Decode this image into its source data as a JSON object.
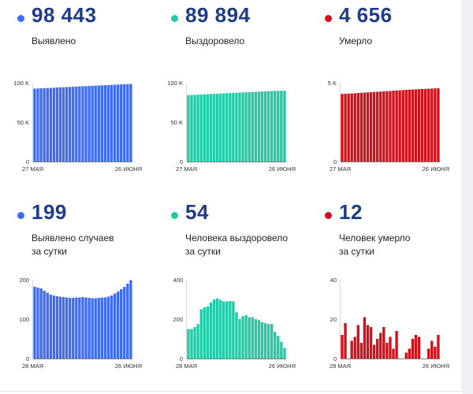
{
  "colors": {
    "blue": "#3d6cf2",
    "teal": "#22c9a5",
    "red": "#d0111b",
    "number": "#1f3c88"
  },
  "panels": [
    {
      "value": "98 443",
      "label": [
        "Выявлено"
      ],
      "color": "#3d6cf2",
      "chart_data": {
        "type": "bar",
        "title": "Выявлено",
        "ylim": [
          0,
          100000
        ],
        "yticks": [
          "100 K",
          "50 K",
          "0"
        ],
        "xtick_start": "27 МАЯ",
        "xtick_end": "26 ИЮНЯ",
        "values": [
          92500,
          92700,
          92900,
          93100,
          93300,
          93500,
          93700,
          93900,
          94100,
          94300,
          94500,
          94700,
          94900,
          95100,
          95300,
          95500,
          95700,
          95900,
          96100,
          96300,
          96500,
          96700,
          96900,
          97100,
          97300,
          97500,
          97700,
          97900,
          98100,
          98250,
          98443
        ]
      }
    },
    {
      "value": "89 894",
      "label": [
        "Выздоровело"
      ],
      "color": "#22c9a5",
      "chart_data": {
        "type": "bar",
        "title": "Выздоровело",
        "ylim": [
          0,
          100000
        ],
        "yticks": [
          "100 K",
          "50 K",
          "0"
        ],
        "xtick_start": "27 МАЯ",
        "xtick_end": "26 ИЮНЯ",
        "values": [
          84300,
          84500,
          84700,
          84900,
          85100,
          85300,
          85500,
          85700,
          85900,
          86100,
          86300,
          86500,
          86700,
          86900,
          87100,
          87300,
          87500,
          87700,
          87900,
          88100,
          88300,
          88500,
          88700,
          88900,
          89100,
          89300,
          89500,
          89600,
          89700,
          89800,
          89894
        ]
      }
    },
    {
      "value": "4 656",
      "label": [
        "Умерло"
      ],
      "color": "#d0111b",
      "chart_data": {
        "type": "bar",
        "title": "Умерло",
        "ylim": [
          0,
          5000
        ],
        "yticks": [
          "5 K",
          "",
          "0"
        ],
        "xtick_start": "27 МАЯ",
        "xtick_end": "26 ИЮНЯ",
        "values": [
          4290,
          4300,
          4310,
          4320,
          4335,
          4350,
          4360,
          4375,
          4390,
          4400,
          4415,
          4430,
          4440,
          4455,
          4470,
          4480,
          4495,
          4510,
          4520,
          4535,
          4550,
          4560,
          4570,
          4580,
          4590,
          4600,
          4610,
          4620,
          4630,
          4644,
          4656
        ]
      }
    },
    {
      "value": "199",
      "label": [
        "Выявлено случаев",
        "за сутки"
      ],
      "color": "#3d6cf2",
      "chart_data": {
        "type": "bar",
        "title": "Выявлено случаев за сутки",
        "ylim": [
          0,
          200
        ],
        "yticks": [
          "200",
          "100",
          "0"
        ],
        "xtick_start": "28 МАЯ",
        "xtick_end": "26 ИЮНЯ",
        "values": [
          182,
          180,
          178,
          172,
          167,
          162,
          160,
          158,
          157,
          156,
          155,
          154,
          154,
          155,
          155,
          156,
          155,
          154,
          153,
          153,
          154,
          155,
          155,
          157,
          160,
          165,
          170,
          176,
          182,
          190,
          199
        ]
      }
    },
    {
      "value": "54",
      "label": [
        "Человека выздоровело",
        "за сутки"
      ],
      "color": "#22c9a5",
      "chart_data": {
        "type": "bar",
        "title": "Человека выздоровело за сутки",
        "ylim": [
          0,
          400
        ],
        "yticks": [
          "400",
          "200",
          "0"
        ],
        "xtick_start": "28 МАЯ",
        "xtick_end": "26 ИЮНЯ",
        "values": [
          150,
          150,
          160,
          175,
          250,
          260,
          265,
          285,
          300,
          305,
          298,
          290,
          290,
          292,
          290,
          235,
          200,
          215,
          220,
          210,
          210,
          200,
          195,
          185,
          180,
          175,
          175,
          135,
          115,
          85,
          54
        ]
      }
    },
    {
      "value": "12",
      "label": [
        "Человек умерло",
        "за сутки"
      ],
      "color": "#d0111b",
      "chart_data": {
        "type": "bar",
        "title": "Человек умерло за сутки",
        "ylim": [
          0,
          40
        ],
        "yticks": [
          "40",
          "20",
          "0"
        ],
        "xtick_start": "28 МАЯ",
        "xtick_end": "26 ИЮНЯ",
        "values": [
          12,
          18,
          0,
          9,
          11,
          17,
          8,
          21,
          17,
          16,
          7,
          10,
          13,
          16,
          8,
          11,
          5,
          14,
          0,
          0,
          3,
          5,
          10,
          12,
          11,
          0,
          0,
          5,
          9,
          6,
          12
        ]
      }
    }
  ]
}
